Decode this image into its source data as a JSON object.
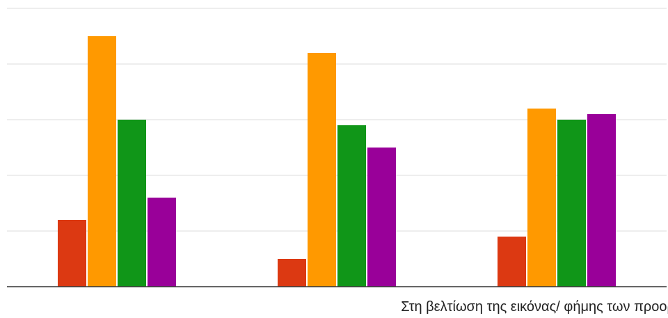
{
  "chart_data": {
    "type": "bar",
    "title": "",
    "xlabel": "",
    "ylabel": "",
    "categories": [
      "",
      "",
      "Στη βελτίωση της εικόνας/ φήμης των προορισμών"
    ],
    "series": [
      {
        "color": "#dc3912",
        "values": [
          12,
          5,
          9
        ]
      },
      {
        "color": "#ff9900",
        "values": [
          45,
          42,
          32
        ]
      },
      {
        "color": "#109618",
        "values": [
          30,
          29,
          30
        ]
      },
      {
        "color": "#990099",
        "values": [
          16,
          25,
          31
        ]
      }
    ],
    "ylim": [
      0,
      50
    ],
    "grid": true,
    "legend": "none"
  }
}
